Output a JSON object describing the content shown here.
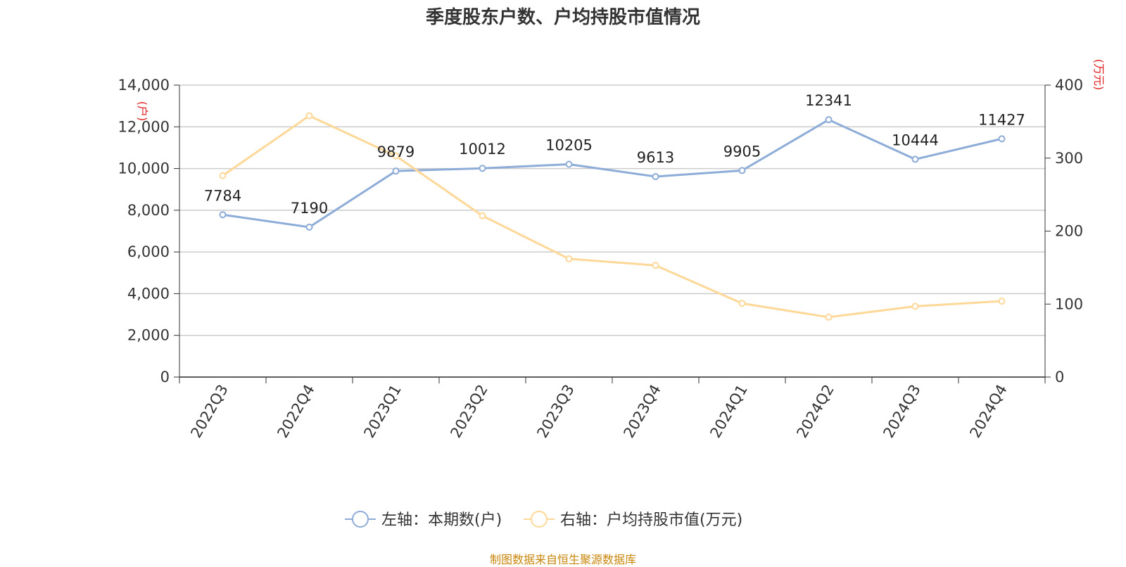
{
  "chart_data": {
    "type": "line",
    "title": "季度股东户数、户均持股市值情况",
    "categories": [
      "2022Q3",
      "2022Q4",
      "2023Q1",
      "2023Q2",
      "2023Q3",
      "2023Q4",
      "2024Q1",
      "2024Q2",
      "2024Q3",
      "2024Q4"
    ],
    "y_left": {
      "unit_label": "(户)",
      "ticks": [
        "0",
        "2,000",
        "4,000",
        "6,000",
        "8,000",
        "10,000",
        "12,000",
        "14,000"
      ],
      "ylim": [
        0,
        14000
      ]
    },
    "y_right": {
      "unit_label": "(万元)",
      "ticks": [
        "0",
        "100",
        "200",
        "300",
        "400"
      ],
      "ylim": [
        0,
        400
      ]
    },
    "series": [
      {
        "name": "左轴：本期数(户)",
        "axis": "left",
        "color": "#8eacd8",
        "values": [
          7784,
          7190,
          9879,
          10012,
          10205,
          9613,
          9905,
          12341,
          10444,
          11427
        ],
        "labels": [
          "7784",
          "7190",
          "9879",
          "10012",
          "10205",
          "9613",
          "9905",
          "12341",
          "10444",
          "11427"
        ]
      },
      {
        "name": "右轴：户均持股市值(万元)",
        "axis": "right",
        "color": "#fdd898",
        "values": [
          276,
          358,
          303,
          221,
          162,
          153,
          101,
          82,
          97,
          104
        ]
      }
    ],
    "grid": true,
    "legend_position": "bottom-center"
  },
  "source": "制图数据来自恒生聚源数据库"
}
